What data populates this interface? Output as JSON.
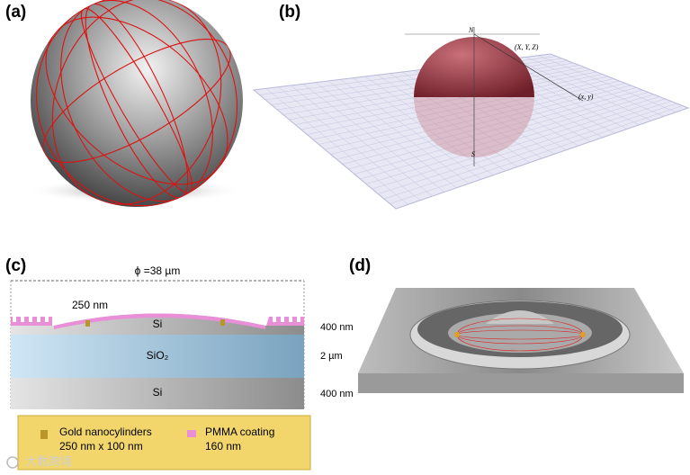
{
  "panels": {
    "a": {
      "label": "(a)"
    },
    "b": {
      "label": "(b)",
      "north": "N",
      "south": "S",
      "point3d": "(X, Y, Z)",
      "point2d": "(x, y)"
    },
    "c": {
      "label": "(c)",
      "diameter": "ϕ =38 µm",
      "gap": "250 nm",
      "top_layer": "Si",
      "middle_layer": "SiO₂",
      "bottom_layer": "Si",
      "thickness_top": "400 nm",
      "thickness_middle": "2 µm",
      "thickness_bottom": "400 nm",
      "legend": {
        "gold_title": "Gold nanocylinders",
        "gold_size": "250 nm x 100 nm",
        "pmma_title": "PMMA coating",
        "pmma_size": "160 nm"
      }
    },
    "d": {
      "label": "(d)"
    }
  },
  "watermark": "大数跨境"
}
